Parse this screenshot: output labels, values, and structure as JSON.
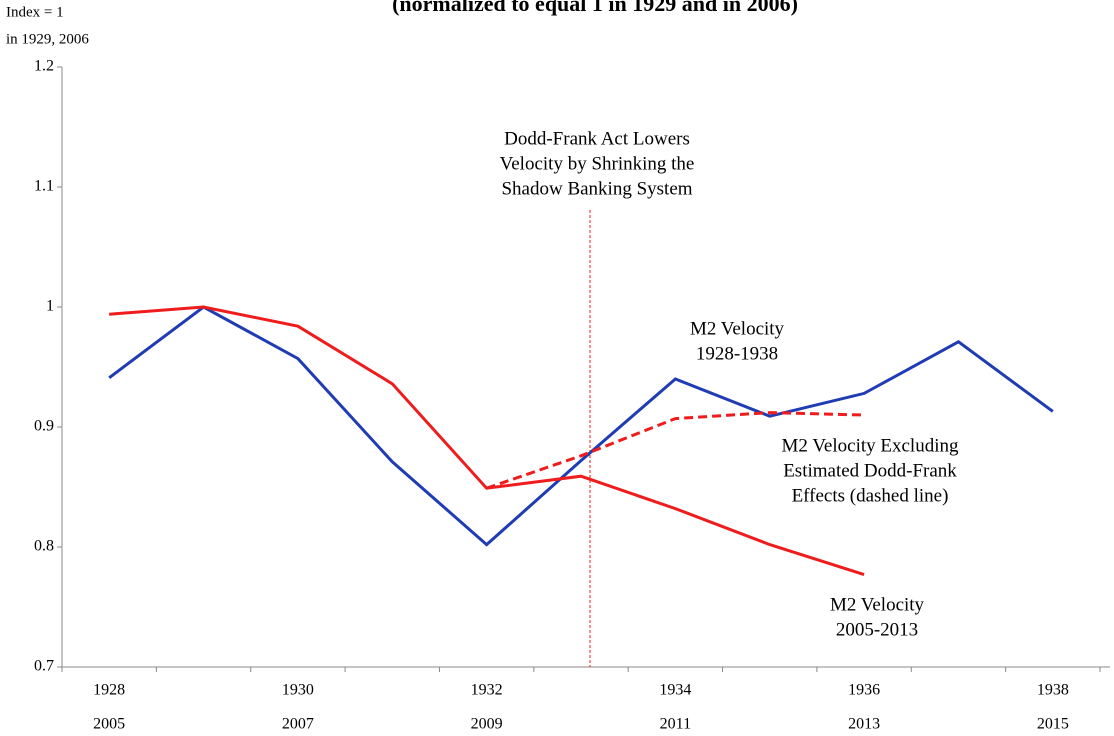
{
  "chart_data": {
    "type": "line",
    "title": "(normalized to equal 1 in 1929 and in 2006)",
    "y_label": [
      "Index = 1",
      "in 1929, 2006"
    ],
    "categories": [
      "1928",
      null,
      "1930",
      null,
      "1932",
      null,
      "1934",
      null,
      "1936",
      null,
      "1938"
    ],
    "categories2": [
      "2005",
      null,
      "2007",
      null,
      "2009",
      null,
      "2011",
      null,
      "2013",
      null,
      "2015"
    ],
    "series": [
      {
        "name": "M2 Velocity 1928-1938",
        "color": "#1f3cb4",
        "dashed": false,
        "values": [
          0.941,
          1.0,
          0.957,
          0.871,
          0.802,
          0.872,
          0.94,
          0.909,
          0.928,
          0.971,
          0.913
        ]
      },
      {
        "name": "M2 Velocity 2005-2013",
        "color": "#ee1c1c",
        "dashed": false,
        "values": [
          0.994,
          1.0,
          0.984,
          0.936,
          0.849,
          0.859,
          0.832,
          0.802,
          0.777,
          null,
          null
        ]
      },
      {
        "name": "M2 Velocity Excluding Estimated Dodd-Frank Effects",
        "color": "#ee1c1c",
        "dashed": true,
        "values": [
          null,
          null,
          null,
          null,
          0.849,
          0.876,
          0.907,
          0.912,
          0.91,
          null,
          null
        ]
      }
    ],
    "annotations": [
      {
        "lines": [
          "Dodd-Frank Act Lowers",
          "Velocity by Shrinking the",
          "Shadow Banking System"
        ],
        "color": "#ee1c1c"
      },
      {
        "lines": [
          "M2 Velocity",
          "1928-1938"
        ],
        "color": "#1f3cb4"
      },
      {
        "lines": [
          "M2 Velocity Excluding",
          "Estimated Dodd-Frank",
          "Effects (dashed line)"
        ],
        "color": "#ee1c1c"
      },
      {
        "lines": [
          "M2 Velocity",
          "2005-2013"
        ],
        "color": "#ee1c1c"
      }
    ],
    "ylim": [
      0.7,
      1.2
    ],
    "yticks": [
      0.7,
      0.8,
      0.9,
      1,
      1.1,
      1.2
    ],
    "grid": false
  }
}
